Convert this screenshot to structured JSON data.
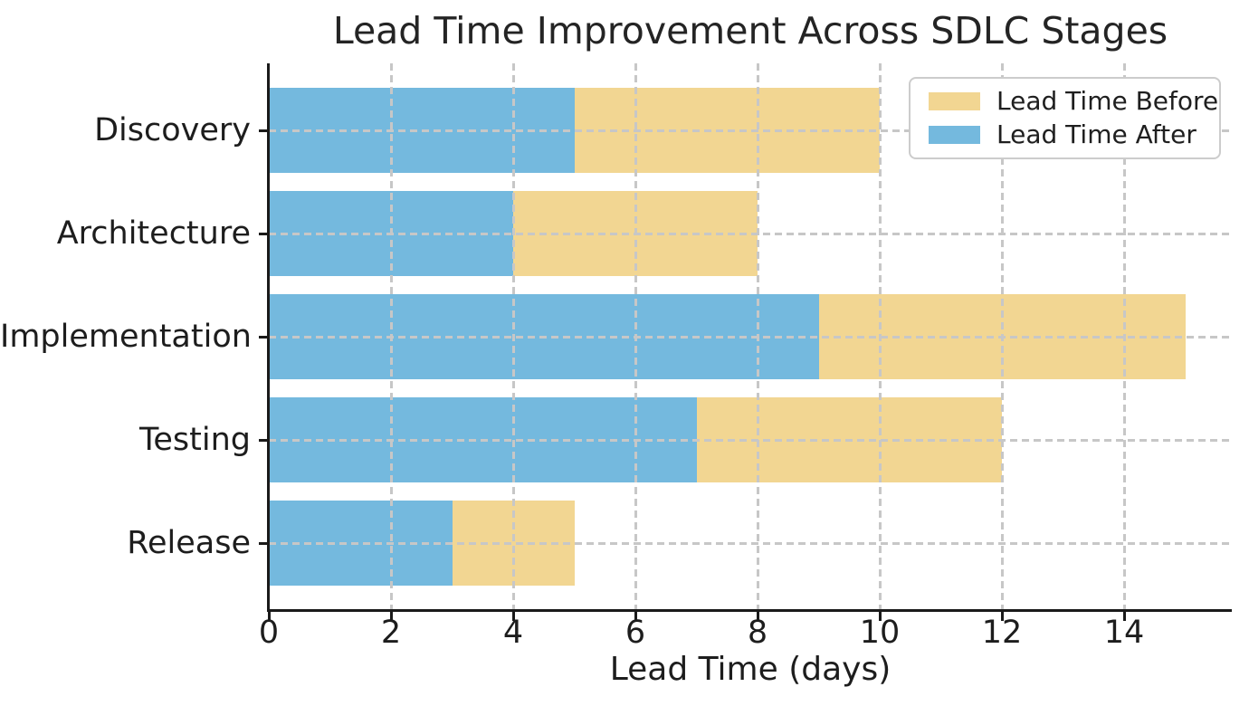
{
  "chart_data": {
    "type": "bar",
    "orientation": "horizontal",
    "title": "Lead Time Improvement Across SDLC Stages",
    "xlabel": "Lead Time (days)",
    "categories": [
      "Discovery",
      "Architecture",
      "Implementation",
      "Testing",
      "Release"
    ],
    "series": [
      {
        "name": "Lead Time Before",
        "color": "#F2D692",
        "values": [
          10,
          8,
          15,
          12,
          5
        ]
      },
      {
        "name": "Lead Time After",
        "color": "#74B9DE",
        "values": [
          5,
          4,
          9,
          7,
          3
        ]
      }
    ],
    "xlim": [
      0,
      15.76
    ],
    "xticks": [
      0,
      2,
      4,
      6,
      8,
      10,
      12,
      14
    ],
    "grid": true,
    "grid_style": "dashed",
    "legend_position": "upper right",
    "colors": {
      "grid": "#c7c7c7",
      "spine": "#1a1a1a",
      "text": "#1d1d1d",
      "background": "#ffffff",
      "legend_border": "#cccccc"
    }
  }
}
